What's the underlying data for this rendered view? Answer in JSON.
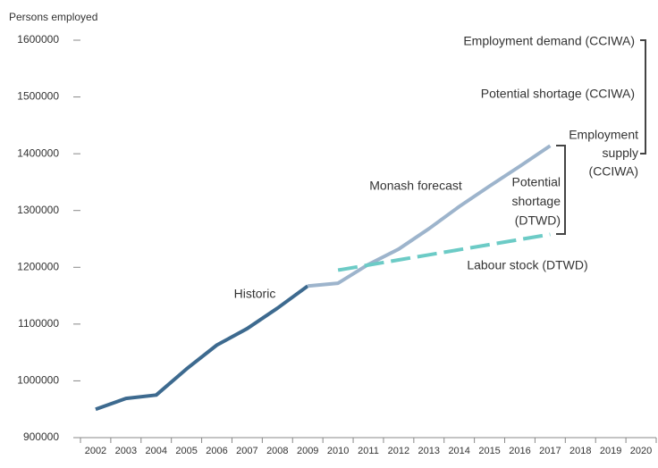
{
  "chart_data": {
    "type": "line",
    "y_label": "Persons employed",
    "categories": [
      "2002",
      "2003",
      "2004",
      "2005",
      "2006",
      "2007",
      "2008",
      "2009",
      "2010",
      "2011",
      "2012",
      "2013",
      "2014",
      "2015",
      "2016",
      "2017",
      "2018",
      "2019",
      "2020"
    ],
    "series": [
      {
        "name": "Historic",
        "color": "#3d6a8f",
        "dashed": false,
        "values": [
          950000,
          969000,
          975000,
          1021000,
          1063000,
          1092000,
          1128000,
          1167000,
          null,
          null,
          null,
          null,
          null,
          null,
          null,
          null,
          null,
          null,
          null
        ]
      },
      {
        "name": "Monash forecast",
        "color": "#9db4cc",
        "dashed": false,
        "values": [
          null,
          null,
          null,
          null,
          null,
          null,
          null,
          1167000,
          1172000,
          1205000,
          1232000,
          1268000,
          1307000,
          1343000,
          1378000,
          1414000,
          null,
          null,
          null
        ]
      },
      {
        "name": "Labour stock (DTWD)",
        "color": "#6ccbc6",
        "dashed": true,
        "values": [
          null,
          null,
          null,
          null,
          null,
          null,
          null,
          null,
          1195000,
          1204000,
          1213000,
          1222000,
          1231000,
          1240000,
          1249000,
          1258000,
          null,
          null,
          null
        ]
      }
    ],
    "ylim": [
      900000,
      1600000
    ],
    "yticks": [
      900000,
      1000000,
      1100000,
      1200000,
      1300000,
      1400000,
      1500000,
      1600000
    ],
    "annotations": [
      {
        "lines": [
          "Employment demand (CCIWA)"
        ]
      },
      {
        "lines": [
          "Potential shortage (CCIWA)"
        ]
      },
      {
        "lines": [
          "Employment",
          "supply",
          "(CCIWA)"
        ]
      },
      {
        "lines": [
          "Potential",
          "shortage",
          "(DTWD)"
        ]
      }
    ]
  }
}
